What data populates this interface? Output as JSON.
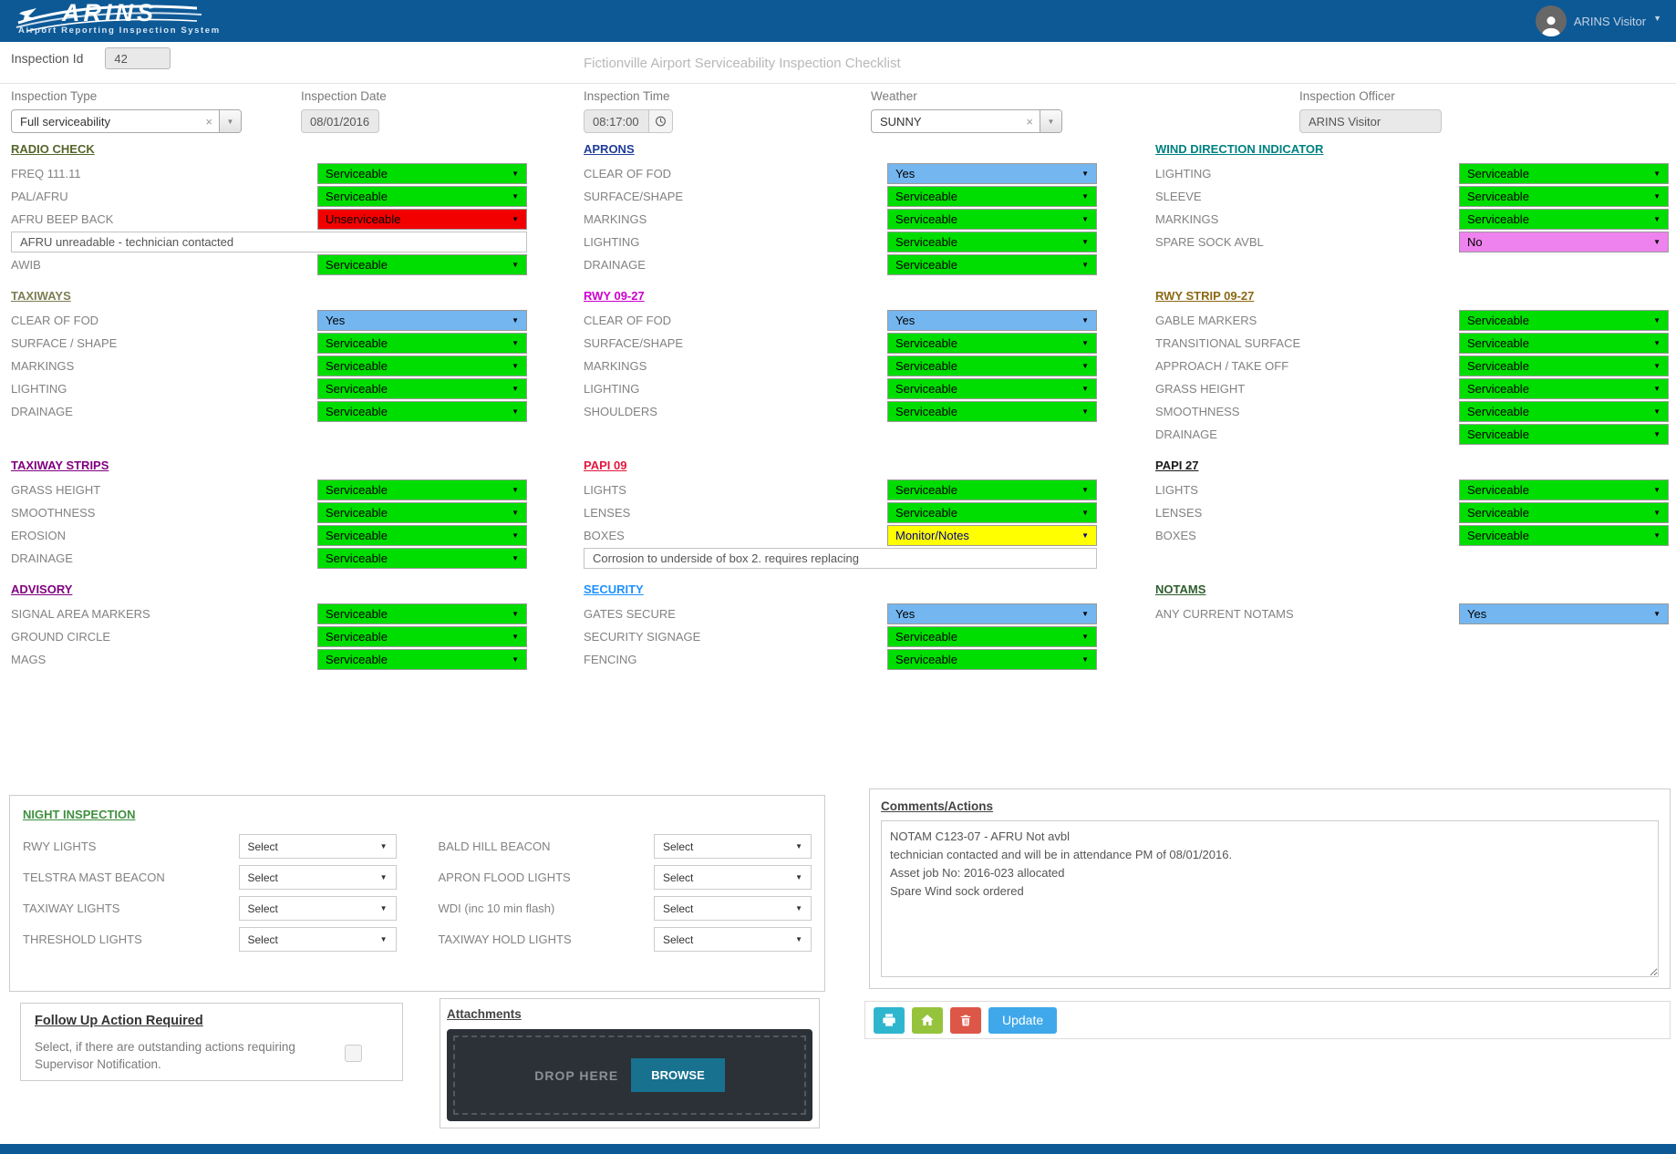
{
  "header": {
    "logo_title": "ARINS",
    "logo_subtitle": "Airport Reporting Inspection System",
    "user_name": "ARINS Visitor",
    "user_icon": "user-avatar-icon"
  },
  "id_bar": {
    "label": "Inspection Id",
    "value": "42",
    "page_title": "Fictionville Airport Serviceability Inspection Checklist"
  },
  "meta": {
    "fields": [
      {
        "label": "Inspection Type",
        "value": "Full serviceability",
        "type": "combo"
      },
      {
        "label": "Inspection Date",
        "value": "08/01/2016",
        "type": "readonly"
      },
      {
        "label": "Inspection Time",
        "value": "08:17:00",
        "type": "time",
        "icon": "clock-icon"
      },
      {
        "label": "Weather",
        "value": "SUNNY",
        "type": "combo"
      },
      {
        "label": "Inspection Officer",
        "value": "ARINS Visitor",
        "type": "readonly"
      }
    ]
  },
  "status_colors": {
    "green": "#00dd00",
    "blue": "#74b6f0",
    "red": "#f20000",
    "yellow": "#ffff00",
    "violet": "#ee82ee"
  },
  "columns": [
    {
      "sections": [
        {
          "title": "RADIO CHECK",
          "color": "#55652a",
          "rows": [
            {
              "label": "FREQ 111.11",
              "value": "Serviceable",
              "status": "green"
            },
            {
              "label": "PAL/AFRU",
              "value": "Serviceable",
              "status": "green"
            },
            {
              "label": "AFRU BEEP BACK",
              "value": "Unserviceable",
              "status": "red"
            },
            {
              "note": "AFRU unreadable - technician contacted"
            },
            {
              "label": "AWIB",
              "value": "Serviceable",
              "status": "green"
            }
          ]
        },
        {
          "title": "TAXIWAYS",
          "color": "#7d7d54",
          "rows": [
            {
              "label": "CLEAR OF FOD",
              "value": "Yes",
              "status": "blue"
            },
            {
              "label": "SURFACE / SHAPE",
              "value": "Serviceable",
              "status": "green"
            },
            {
              "label": "MARKINGS",
              "value": "Serviceable",
              "status": "green"
            },
            {
              "label": "LIGHTING",
              "value": "Serviceable",
              "status": "green"
            },
            {
              "label": "DRAINAGE",
              "value": "Serviceable",
              "status": "green"
            }
          ]
        },
        {
          "title": "TAXIWAY STRIPS",
          "color": "#800080",
          "rows": [
            {
              "label": "GRASS HEIGHT",
              "value": "Serviceable",
              "status": "green"
            },
            {
              "label": "SMOOTHNESS",
              "value": "Serviceable",
              "status": "green"
            },
            {
              "label": "EROSION",
              "value": "Serviceable",
              "status": "green"
            },
            {
              "label": "DRAINAGE",
              "value": "Serviceable",
              "status": "green"
            }
          ]
        },
        {
          "title": "ADVISORY",
          "color": "#800080",
          "rows": [
            {
              "label": "SIGNAL AREA MARKERS",
              "value": "Serviceable",
              "status": "green"
            },
            {
              "label": "GROUND CIRCLE",
              "value": "Serviceable",
              "status": "green"
            },
            {
              "label": "MAGS",
              "value": "Serviceable",
              "status": "green"
            }
          ]
        }
      ]
    },
    {
      "sections": [
        {
          "title": "APRONS",
          "color": "#1f3d99",
          "rows": [
            {
              "label": "CLEAR OF FOD",
              "value": "Yes",
              "status": "blue"
            },
            {
              "label": "SURFACE/SHAPE",
              "value": "Serviceable",
              "status": "green"
            },
            {
              "label": "MARKINGS",
              "value": "Serviceable",
              "status": "green"
            },
            {
              "label": "LIGHTING",
              "value": "Serviceable",
              "status": "green"
            },
            {
              "label": "DRAINAGE",
              "value": "Serviceable",
              "status": "green"
            }
          ]
        },
        {
          "title": "RWY 09-27",
          "color": "#cc00cc",
          "rows": [
            {
              "label": "CLEAR OF FOD",
              "value": "Yes",
              "status": "blue"
            },
            {
              "label": "SURFACE/SHAPE",
              "value": "Serviceable",
              "status": "green"
            },
            {
              "label": "MARKINGS",
              "value": "Serviceable",
              "status": "green"
            },
            {
              "label": "LIGHTING",
              "value": "Serviceable",
              "status": "green"
            },
            {
              "label": "SHOULDERS",
              "value": "Serviceable",
              "status": "green"
            }
          ]
        },
        {
          "title": "PAPI 09",
          "color": "#e3173e",
          "rows": [
            {
              "label": "LIGHTS",
              "value": "Serviceable",
              "status": "green"
            },
            {
              "label": "LENSES",
              "value": "Serviceable",
              "status": "green"
            },
            {
              "label": "BOXES",
              "value": "Monitor/Notes",
              "status": "yellow"
            },
            {
              "note": "Corrosion to underside of box 2. requires replacing"
            }
          ]
        },
        {
          "title": "SECURITY",
          "color": "#1e90ff",
          "rows": [
            {
              "label": "GATES SECURE",
              "value": "Yes",
              "status": "blue"
            },
            {
              "label": "SECURITY SIGNAGE",
              "value": "Serviceable",
              "status": "green"
            },
            {
              "label": "FENCING",
              "value": "Serviceable",
              "status": "green"
            }
          ]
        }
      ]
    },
    {
      "sections": [
        {
          "title": "WIND DIRECTION INDICATOR",
          "color": "#008080",
          "rows": [
            {
              "label": "LIGHTING",
              "value": "Serviceable",
              "status": "green"
            },
            {
              "label": "SLEEVE",
              "value": "Serviceable",
              "status": "green"
            },
            {
              "label": "MARKINGS",
              "value": "Serviceable",
              "status": "green"
            },
            {
              "label": "SPARE SOCK AVBL",
              "value": "No",
              "status": "violet"
            }
          ]
        },
        {
          "title": "RWY STRIP 09-27",
          "color": "#8b6914",
          "rows": [
            {
              "label": "GABLE MARKERS",
              "value": "Serviceable",
              "status": "green"
            },
            {
              "label": "TRANSITIONAL SURFACE",
              "value": "Serviceable",
              "status": "green"
            },
            {
              "label": "APPROACH / TAKE OFF",
              "value": "Serviceable",
              "status": "green"
            },
            {
              "label": "GRASS HEIGHT",
              "value": "Serviceable",
              "status": "green"
            },
            {
              "label": "SMOOTHNESS",
              "value": "Serviceable",
              "status": "green"
            },
            {
              "label": "DRAINAGE",
              "value": "Serviceable",
              "status": "green"
            }
          ]
        },
        {
          "title": "PAPI 27",
          "color": "#1a1a1a",
          "rows": [
            {
              "label": "LIGHTS",
              "value": "Serviceable",
              "status": "green"
            },
            {
              "label": "LENSES",
              "value": "Serviceable",
              "status": "green"
            },
            {
              "label": "BOXES",
              "value": "Serviceable",
              "status": "green"
            }
          ]
        },
        {
          "title": "NOTAMS",
          "color": "#2e5e2e",
          "rows": [
            {
              "label": "ANY CURRENT NOTAMS",
              "value": "Yes",
              "status": "blue"
            }
          ]
        }
      ]
    }
  ],
  "night": {
    "title": "NIGHT INSPECTION",
    "color": "#3f8f3f",
    "placeholder": "Select",
    "left": [
      {
        "label": "RWY LIGHTS",
        "value": "Select"
      },
      {
        "label": "TELSTRA MAST BEACON",
        "value": "Select"
      },
      {
        "label": "TAXIWAY LIGHTS",
        "value": "Select"
      },
      {
        "label": "THRESHOLD LIGHTS",
        "value": "Select"
      }
    ],
    "right": [
      {
        "label": "BALD HILL BEACON",
        "value": "Select"
      },
      {
        "label": "APRON FLOOD LIGHTS",
        "value": "Select"
      },
      {
        "label": "WDI (inc 10 min flash)",
        "value": "Select"
      },
      {
        "label": "TAXIWAY HOLD LIGHTS",
        "value": "Select"
      }
    ]
  },
  "comments": {
    "title": "Comments/Actions",
    "text": "NOTAM C123-07 - AFRU Not avbl\ntechnician contacted and will be in attendance PM of 08/01/2016.\nAsset job No: 2016-023 allocated\nSpare Wind sock ordered"
  },
  "follow_up": {
    "title": "Follow Up Action Required",
    "description": "Select, if there are outstanding actions requiring Supervisor Notification."
  },
  "attachments": {
    "title": "Attachments",
    "drop_label": "DROP HERE",
    "browse_label": "BROWSE"
  },
  "actions": {
    "print_icon": "printer-icon",
    "home_icon": "home-icon",
    "delete_icon": "trash-icon",
    "update_label": "Update"
  }
}
